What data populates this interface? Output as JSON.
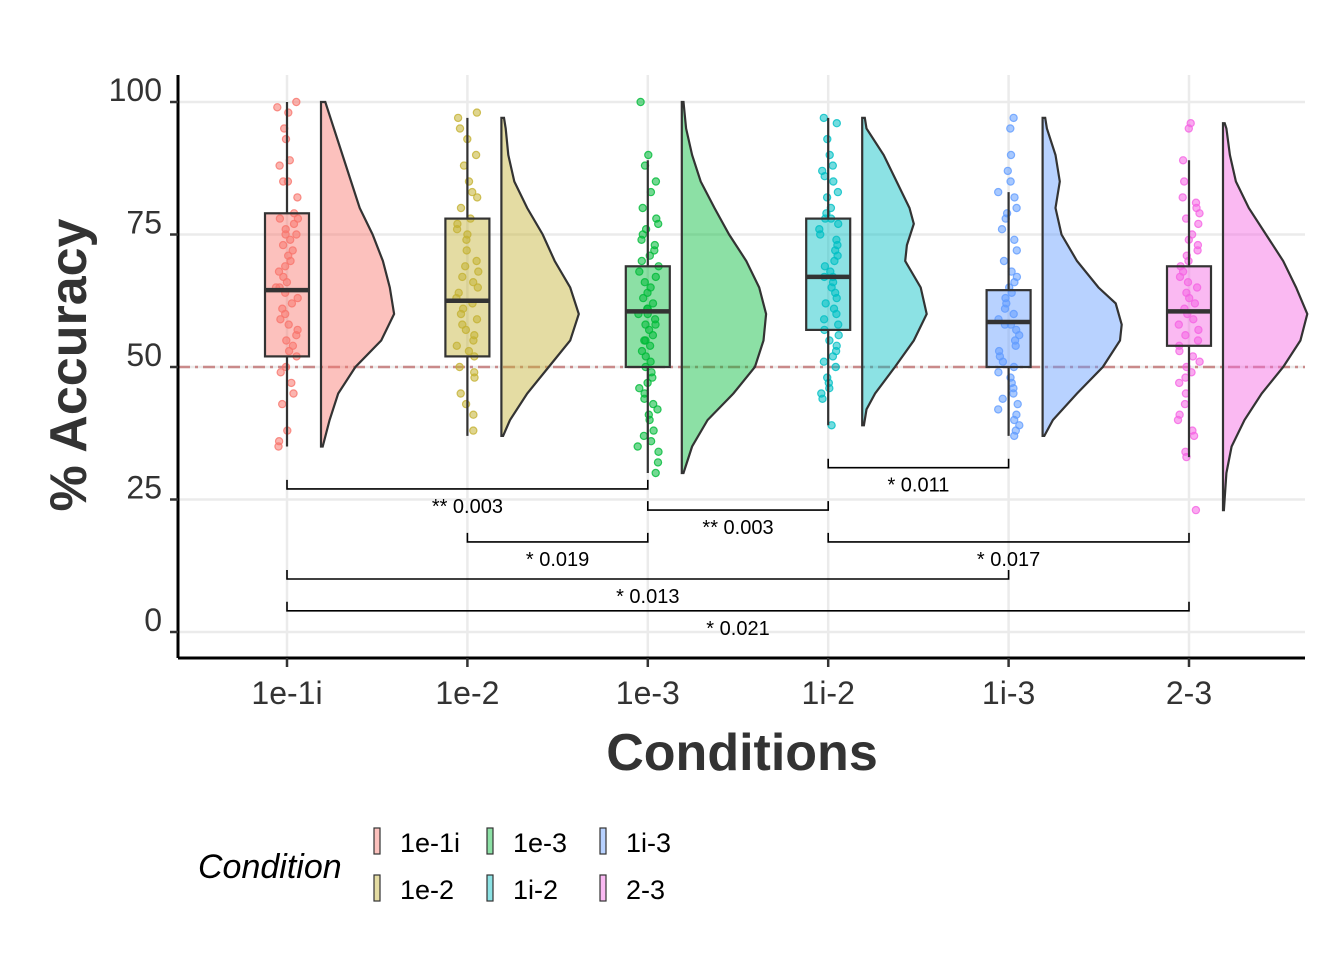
{
  "chart_data": {
    "type": "raincloud",
    "xlabel": "Conditions",
    "ylabel": "% Accuracy",
    "ylim": [
      -5,
      105
    ],
    "y_ticks": [
      0,
      25,
      50,
      75,
      100
    ],
    "grid": true,
    "reference_line": {
      "y": 50,
      "style": "dash-dot",
      "color": "#c98a8a"
    },
    "categories": [
      "1e-1i",
      "1e-2",
      "1e-3",
      "1i-2",
      "1i-3",
      "2-3"
    ],
    "series": [
      {
        "name": "1e-1i",
        "color": "#F8766D",
        "box": {
          "min": 35,
          "q1": 52,
          "median": 64.5,
          "q3": 79,
          "max": 100
        },
        "density": [
          [
            35,
            0.02
          ],
          [
            40,
            0.1
          ],
          [
            45,
            0.2
          ],
          [
            50,
            0.4
          ],
          [
            55,
            0.7
          ],
          [
            60,
            0.85
          ],
          [
            65,
            0.8
          ],
          [
            70,
            0.72
          ],
          [
            75,
            0.6
          ],
          [
            80,
            0.45
          ],
          [
            85,
            0.35
          ],
          [
            90,
            0.25
          ],
          [
            95,
            0.15
          ],
          [
            100,
            0.05
          ]
        ],
        "points": [
          100,
          99,
          98,
          95,
          93,
          89,
          88,
          85,
          85,
          82,
          79,
          78,
          78,
          77,
          76,
          75,
          75,
          74,
          73,
          72,
          71,
          70,
          69,
          68,
          67,
          66,
          65,
          65,
          64,
          63,
          62,
          61,
          60,
          59,
          58,
          57,
          56,
          55,
          54,
          53,
          52,
          50,
          49,
          47,
          45,
          43,
          38,
          36,
          35
        ]
      },
      {
        "name": "1e-2",
        "color": "#C4B233",
        "box": {
          "min": 37,
          "q1": 52,
          "median": 62.5,
          "q3": 78,
          "max": 97
        },
        "density": [
          [
            37,
            0.02
          ],
          [
            40,
            0.1
          ],
          [
            45,
            0.3
          ],
          [
            50,
            0.55
          ],
          [
            55,
            0.8
          ],
          [
            60,
            0.9
          ],
          [
            65,
            0.8
          ],
          [
            70,
            0.62
          ],
          [
            75,
            0.48
          ],
          [
            80,
            0.3
          ],
          [
            85,
            0.15
          ],
          [
            90,
            0.08
          ],
          [
            95,
            0.05
          ],
          [
            97,
            0.03
          ]
        ],
        "points": [
          98,
          97,
          95,
          93,
          90,
          88,
          85,
          83,
          82,
          80,
          78,
          77,
          76,
          75,
          74,
          72,
          70,
          69,
          68,
          67,
          66,
          65,
          64,
          63,
          62,
          61,
          60,
          59,
          58,
          57,
          56,
          55,
          54,
          53,
          52,
          50,
          49,
          48,
          45,
          43,
          41,
          38
        ]
      },
      {
        "name": "1e-3",
        "color": "#00BA38",
        "box": {
          "min": 30,
          "q1": 50,
          "median": 60.5,
          "q3": 69,
          "max": 89
        },
        "density": [
          [
            30,
            0.02
          ],
          [
            35,
            0.12
          ],
          [
            40,
            0.3
          ],
          [
            45,
            0.6
          ],
          [
            50,
            0.85
          ],
          [
            55,
            0.95
          ],
          [
            60,
            0.98
          ],
          [
            65,
            0.9
          ],
          [
            70,
            0.75
          ],
          [
            75,
            0.55
          ],
          [
            80,
            0.38
          ],
          [
            85,
            0.22
          ],
          [
            90,
            0.12
          ],
          [
            95,
            0.05
          ],
          [
            100,
            0.02
          ]
        ],
        "points": [
          100,
          90,
          88,
          85,
          83,
          80,
          78,
          77,
          76,
          75,
          74,
          73,
          72,
          71,
          70,
          69,
          68,
          67,
          66,
          65,
          64,
          63,
          62,
          61,
          61,
          60,
          60,
          59,
          58,
          58,
          57,
          56,
          55,
          55,
          54,
          53,
          52,
          51,
          50,
          49,
          48,
          47,
          46,
          45,
          44,
          43,
          42,
          41,
          40,
          38,
          37,
          36,
          35,
          34,
          32,
          30
        ]
      },
      {
        "name": "1i-2",
        "color": "#00BFC4",
        "box": {
          "min": 39,
          "q1": 57,
          "median": 67,
          "q3": 78,
          "max": 97
        },
        "density": [
          [
            39,
            0.02
          ],
          [
            42,
            0.05
          ],
          [
            45,
            0.15
          ],
          [
            50,
            0.38
          ],
          [
            55,
            0.6
          ],
          [
            60,
            0.75
          ],
          [
            65,
            0.68
          ],
          [
            70,
            0.5
          ],
          [
            73,
            0.52
          ],
          [
            77,
            0.6
          ],
          [
            80,
            0.55
          ],
          [
            85,
            0.4
          ],
          [
            90,
            0.25
          ],
          [
            95,
            0.05
          ],
          [
            97,
            0.03
          ]
        ],
        "points": [
          97,
          96,
          93,
          90,
          88,
          87,
          86,
          85,
          83,
          82,
          80,
          79,
          78,
          78,
          77,
          76,
          75,
          74,
          73,
          72,
          71,
          70,
          69,
          68,
          67,
          67,
          66,
          65,
          64,
          63,
          62,
          61,
          60,
          59,
          58,
          57,
          56,
          55,
          54,
          53,
          52,
          51,
          50,
          48,
          47,
          46,
          45,
          44,
          39
        ]
      },
      {
        "name": "1i-3",
        "color": "#619CFF",
        "box": {
          "min": 37,
          "q1": 50,
          "median": 58.5,
          "q3": 64.5,
          "max": 83
        },
        "density": [
          [
            37,
            0.02
          ],
          [
            40,
            0.12
          ],
          [
            45,
            0.4
          ],
          [
            50,
            0.7
          ],
          [
            55,
            0.9
          ],
          [
            58,
            0.92
          ],
          [
            62,
            0.85
          ],
          [
            65,
            0.65
          ],
          [
            70,
            0.4
          ],
          [
            75,
            0.22
          ],
          [
            80,
            0.15
          ],
          [
            85,
            0.2
          ],
          [
            90,
            0.15
          ],
          [
            95,
            0.05
          ],
          [
            97,
            0.03
          ]
        ],
        "points": [
          97,
          95,
          90,
          87,
          85,
          83,
          82,
          80,
          79,
          78,
          76,
          74,
          72,
          70,
          68,
          67,
          66,
          65,
          64,
          63,
          62,
          61,
          60,
          59,
          58,
          58,
          57,
          56,
          55,
          54,
          53,
          52,
          51,
          50,
          49,
          48,
          47,
          46,
          45,
          44,
          43,
          42,
          41,
          40,
          39,
          38,
          37
        ]
      },
      {
        "name": "2-3",
        "color": "#F564E3",
        "box": {
          "min": 33,
          "q1": 54,
          "median": 60.5,
          "q3": 69,
          "max": 89
        },
        "density": [
          [
            23,
            0.01
          ],
          [
            30,
            0.04
          ],
          [
            35,
            0.1
          ],
          [
            40,
            0.25
          ],
          [
            45,
            0.45
          ],
          [
            50,
            0.7
          ],
          [
            55,
            0.9
          ],
          [
            60,
            0.98
          ],
          [
            65,
            0.85
          ],
          [
            70,
            0.7
          ],
          [
            75,
            0.5
          ],
          [
            80,
            0.3
          ],
          [
            85,
            0.15
          ],
          [
            90,
            0.08
          ],
          [
            95,
            0.04
          ],
          [
            96,
            0.02
          ]
        ],
        "points": [
          96,
          95,
          89,
          85,
          82,
          81,
          80,
          79,
          78,
          77,
          75,
          74,
          73,
          72,
          71,
          70,
          69,
          68,
          67,
          66,
          65,
          64,
          63,
          62,
          61,
          60,
          59,
          58,
          57,
          56,
          55,
          54,
          53,
          52,
          51,
          50,
          49,
          48,
          47,
          45,
          43,
          41,
          40,
          38,
          37,
          34,
          33,
          23
        ]
      }
    ],
    "comparisons": [
      {
        "from": "1e-1i",
        "to": "1e-3",
        "y": 27,
        "label": "** 0.003"
      },
      {
        "from": "1e-3",
        "to": "1i-2",
        "y": 23,
        "label": "** 0.003"
      },
      {
        "from": "1i-2",
        "to": "1i-3",
        "y": 31,
        "label": "* 0.011"
      },
      {
        "from": "1e-2",
        "to": "1e-3",
        "y": 17,
        "label": "* 0.019"
      },
      {
        "from": "1i-2",
        "to": "2-3",
        "y": 17,
        "label": "* 0.017"
      },
      {
        "from": "1e-1i",
        "to": "1i-3",
        "y": 10,
        "label": "* 0.013"
      },
      {
        "from": "1e-1i",
        "to": "2-3",
        "y": 4,
        "label": "* 0.021"
      }
    ],
    "legend": {
      "title": "Condition",
      "placement": "bottom-left",
      "items": [
        "1e-1i",
        "1e-2",
        "1e-3",
        "1i-2",
        "1i-3",
        "2-3"
      ]
    }
  }
}
